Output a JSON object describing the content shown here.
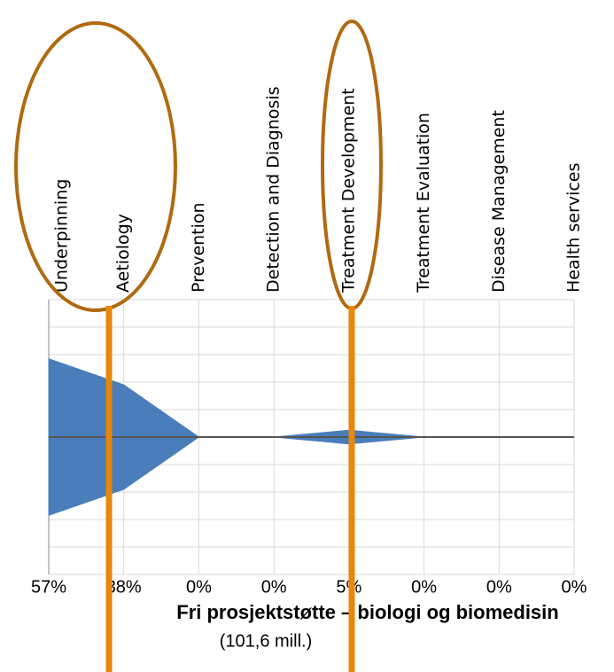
{
  "chart_data": {
    "type": "area",
    "title": "Fri prosjektstøtte – biologi og biomedisin",
    "subtitle": "(101,6 mill.)",
    "categories": [
      "Underpinning",
      "Aetiology",
      "Prevention",
      "Detection and Diagnosis",
      "Treatment Development",
      "Treatment Evaluation",
      "Disease Management",
      "Health services"
    ],
    "values": [
      57,
      38,
      0,
      0,
      5,
      0,
      0,
      0
    ],
    "value_labels": [
      "57%",
      "38%",
      "0%",
      "0%",
      "5%",
      "0%",
      "0%",
      "0%"
    ],
    "color": "#4a7ebb",
    "ylim": [
      -100,
      100
    ],
    "grid": true
  }
}
